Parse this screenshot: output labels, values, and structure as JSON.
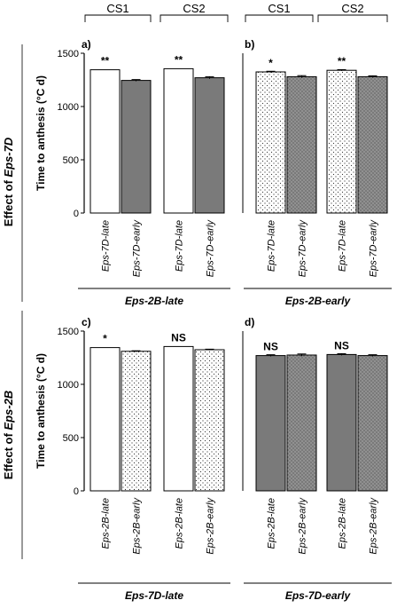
{
  "row_titles": {
    "top": {
      "prefix": "Effect of ",
      "gene": "Eps-7D"
    },
    "bottom": {
      "prefix": "Effect of ",
      "gene": "Eps-2B"
    }
  },
  "ylabel": "Time to anthesis (°C d)",
  "panels": [
    {
      "label": "a)",
      "group_labels": [
        "CS1",
        "CS2"
      ],
      "categories": [
        "Eps-7D-late",
        "Eps-7D-early",
        "Eps-7D-late",
        "Eps-7D-early"
      ],
      "values": [
        1345,
        1245,
        1355,
        1270
      ],
      "errors": [
        0,
        8,
        0,
        10
      ],
      "fills": [
        "white",
        "gray",
        "white",
        "gray"
      ],
      "significance": [
        "**",
        "**"
      ],
      "footer": "Eps-2B-late",
      "ylim": [
        0,
        1500
      ],
      "yticks": [
        0,
        500,
        1000,
        1500
      ]
    },
    {
      "label": "b)",
      "group_labels": [
        "CS1",
        "CS2"
      ],
      "categories": [
        "Eps-7D-late",
        "Eps-7D-early",
        "Eps-7D-late",
        "Eps-7D-early"
      ],
      "values": [
        1325,
        1280,
        1340,
        1280
      ],
      "errors": [
        6,
        10,
        6,
        8
      ],
      "fills": [
        "dots",
        "darkdots",
        "dots",
        "darkdots"
      ],
      "significance": [
        "*",
        "**"
      ],
      "footer": "Eps-2B-early",
      "ylim": [
        0,
        1500
      ],
      "yticks": [
        0,
        500,
        1000,
        1500
      ]
    },
    {
      "label": "c)",
      "group_labels": [],
      "categories": [
        "Eps-2B-late",
        "Eps-2B-early",
        "Eps-2B-late",
        "Eps-2B-early"
      ],
      "values": [
        1345,
        1310,
        1355,
        1325
      ],
      "errors": [
        0,
        5,
        0,
        5
      ],
      "fills": [
        "white",
        "dots",
        "white",
        "dots"
      ],
      "significance": [
        "*",
        "NS"
      ],
      "footer": "Eps-7D-late",
      "ylim": [
        0,
        1500
      ],
      "yticks": [
        0,
        500,
        1000,
        1500
      ]
    },
    {
      "label": "d)",
      "group_labels": [],
      "categories": [
        "Eps-2B-late",
        "Eps-2B-early",
        "Eps-2B-late",
        "Eps-2B-early"
      ],
      "values": [
        1270,
        1275,
        1280,
        1270
      ],
      "errors": [
        8,
        10,
        8,
        8
      ],
      "fills": [
        "gray",
        "darkdots",
        "gray",
        "darkdots"
      ],
      "significance": [
        "NS",
        "NS"
      ],
      "footer": "Eps-7D-early",
      "ylim": [
        0,
        1500
      ],
      "yticks": [
        0,
        500,
        1000,
        1500
      ]
    }
  ],
  "chart_data": [
    {
      "type": "bar",
      "panel": "a)",
      "categories": [
        "Eps-7D-late",
        "Eps-7D-early",
        "Eps-7D-late",
        "Eps-7D-early"
      ],
      "groups": [
        "CS1",
        "CS1",
        "CS2",
        "CS2"
      ],
      "values": [
        1345,
        1245,
        1355,
        1270
      ],
      "ylabel": "Time to anthesis (°C d)",
      "ylim": [
        0,
        1500
      ]
    },
    {
      "type": "bar",
      "panel": "b)",
      "categories": [
        "Eps-7D-late",
        "Eps-7D-early",
        "Eps-7D-late",
        "Eps-7D-early"
      ],
      "groups": [
        "CS1",
        "CS1",
        "CS2",
        "CS2"
      ],
      "values": [
        1325,
        1280,
        1340,
        1280
      ],
      "ylim": [
        0,
        1500
      ]
    },
    {
      "type": "bar",
      "panel": "c)",
      "categories": [
        "Eps-2B-late",
        "Eps-2B-early",
        "Eps-2B-late",
        "Eps-2B-early"
      ],
      "values": [
        1345,
        1310,
        1355,
        1325
      ],
      "ylabel": "Time to anthesis (°C d)",
      "ylim": [
        0,
        1500
      ]
    },
    {
      "type": "bar",
      "panel": "d)",
      "categories": [
        "Eps-2B-late",
        "Eps-2B-early",
        "Eps-2B-late",
        "Eps-2B-early"
      ],
      "values": [
        1270,
        1275,
        1280,
        1270
      ],
      "ylim": [
        0,
        1500
      ]
    }
  ]
}
